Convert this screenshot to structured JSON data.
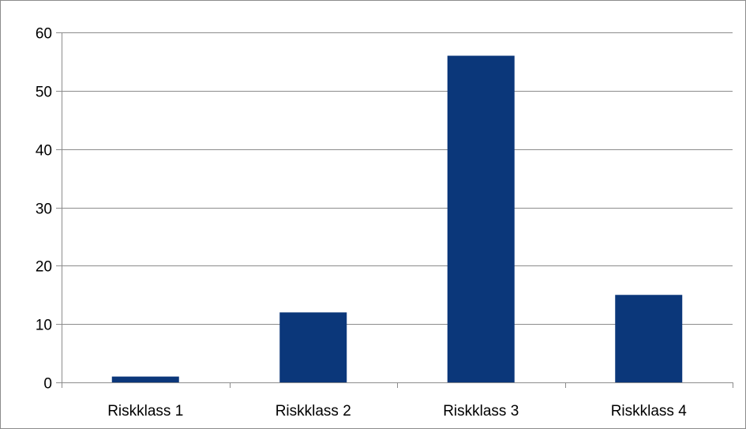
{
  "chart_data": {
    "type": "bar",
    "categories": [
      "Riskklass 1",
      "Riskklass 2",
      "Riskklass 3",
      "Riskklass 4"
    ],
    "values": [
      1,
      12,
      56,
      15
    ],
    "ylim": [
      0,
      60
    ],
    "yticks": [
      0,
      10,
      20,
      30,
      40,
      50,
      60
    ],
    "grid": true,
    "legend": "none",
    "colors": {
      "bar": "#0b377a",
      "grid": "#8c8c8c",
      "axis": "#8c8c8c",
      "border": "#8c8c8c"
    }
  }
}
